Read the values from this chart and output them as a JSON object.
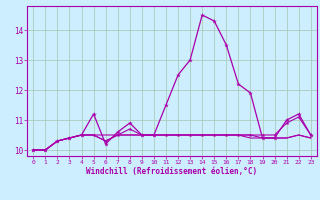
{
  "xlabel": "Windchill (Refroidissement éolien,°C)",
  "background_color": "#cceeff",
  "grid_color": "#aaccbb",
  "line_color": "#aa00aa",
  "x": [
    0,
    1,
    2,
    3,
    4,
    5,
    6,
    7,
    8,
    9,
    10,
    11,
    12,
    13,
    14,
    15,
    16,
    17,
    18,
    19,
    20,
    21,
    22,
    23
  ],
  "series1": [
    10.0,
    10.0,
    10.3,
    10.4,
    10.5,
    11.2,
    10.2,
    10.6,
    10.9,
    10.5,
    10.5,
    11.5,
    12.5,
    13.0,
    14.5,
    14.3,
    13.5,
    12.2,
    11.9,
    10.4,
    10.4,
    11.0,
    11.2,
    10.5
  ],
  "series2": [
    10.0,
    10.0,
    10.3,
    10.4,
    10.5,
    10.5,
    10.5,
    10.5,
    10.5,
    10.5,
    10.5,
    10.5,
    10.5,
    10.5,
    10.5,
    10.5,
    10.5,
    10.5,
    10.5,
    10.4,
    10.4,
    10.4,
    10.5,
    10.4
  ],
  "series3": [
    10.0,
    10.0,
    10.3,
    10.4,
    10.5,
    10.5,
    10.3,
    10.5,
    10.7,
    10.5,
    10.5,
    10.5,
    10.5,
    10.5,
    10.5,
    10.5,
    10.5,
    10.5,
    10.5,
    10.5,
    10.5,
    10.9,
    11.1,
    10.5
  ],
  "series4": [
    10.0,
    10.0,
    10.3,
    10.4,
    10.5,
    10.5,
    10.3,
    10.5,
    10.5,
    10.5,
    10.5,
    10.5,
    10.5,
    10.5,
    10.5,
    10.5,
    10.5,
    10.5,
    10.4,
    10.4,
    10.4,
    10.4,
    10.5,
    10.4
  ],
  "ylim_min": 9.8,
  "ylim_max": 14.8,
  "yticks": [
    10,
    11,
    12,
    13,
    14
  ],
  "xticks": [
    0,
    1,
    2,
    3,
    4,
    5,
    6,
    7,
    8,
    9,
    10,
    11,
    12,
    13,
    14,
    15,
    16,
    17,
    18,
    19,
    20,
    21,
    22,
    23
  ]
}
